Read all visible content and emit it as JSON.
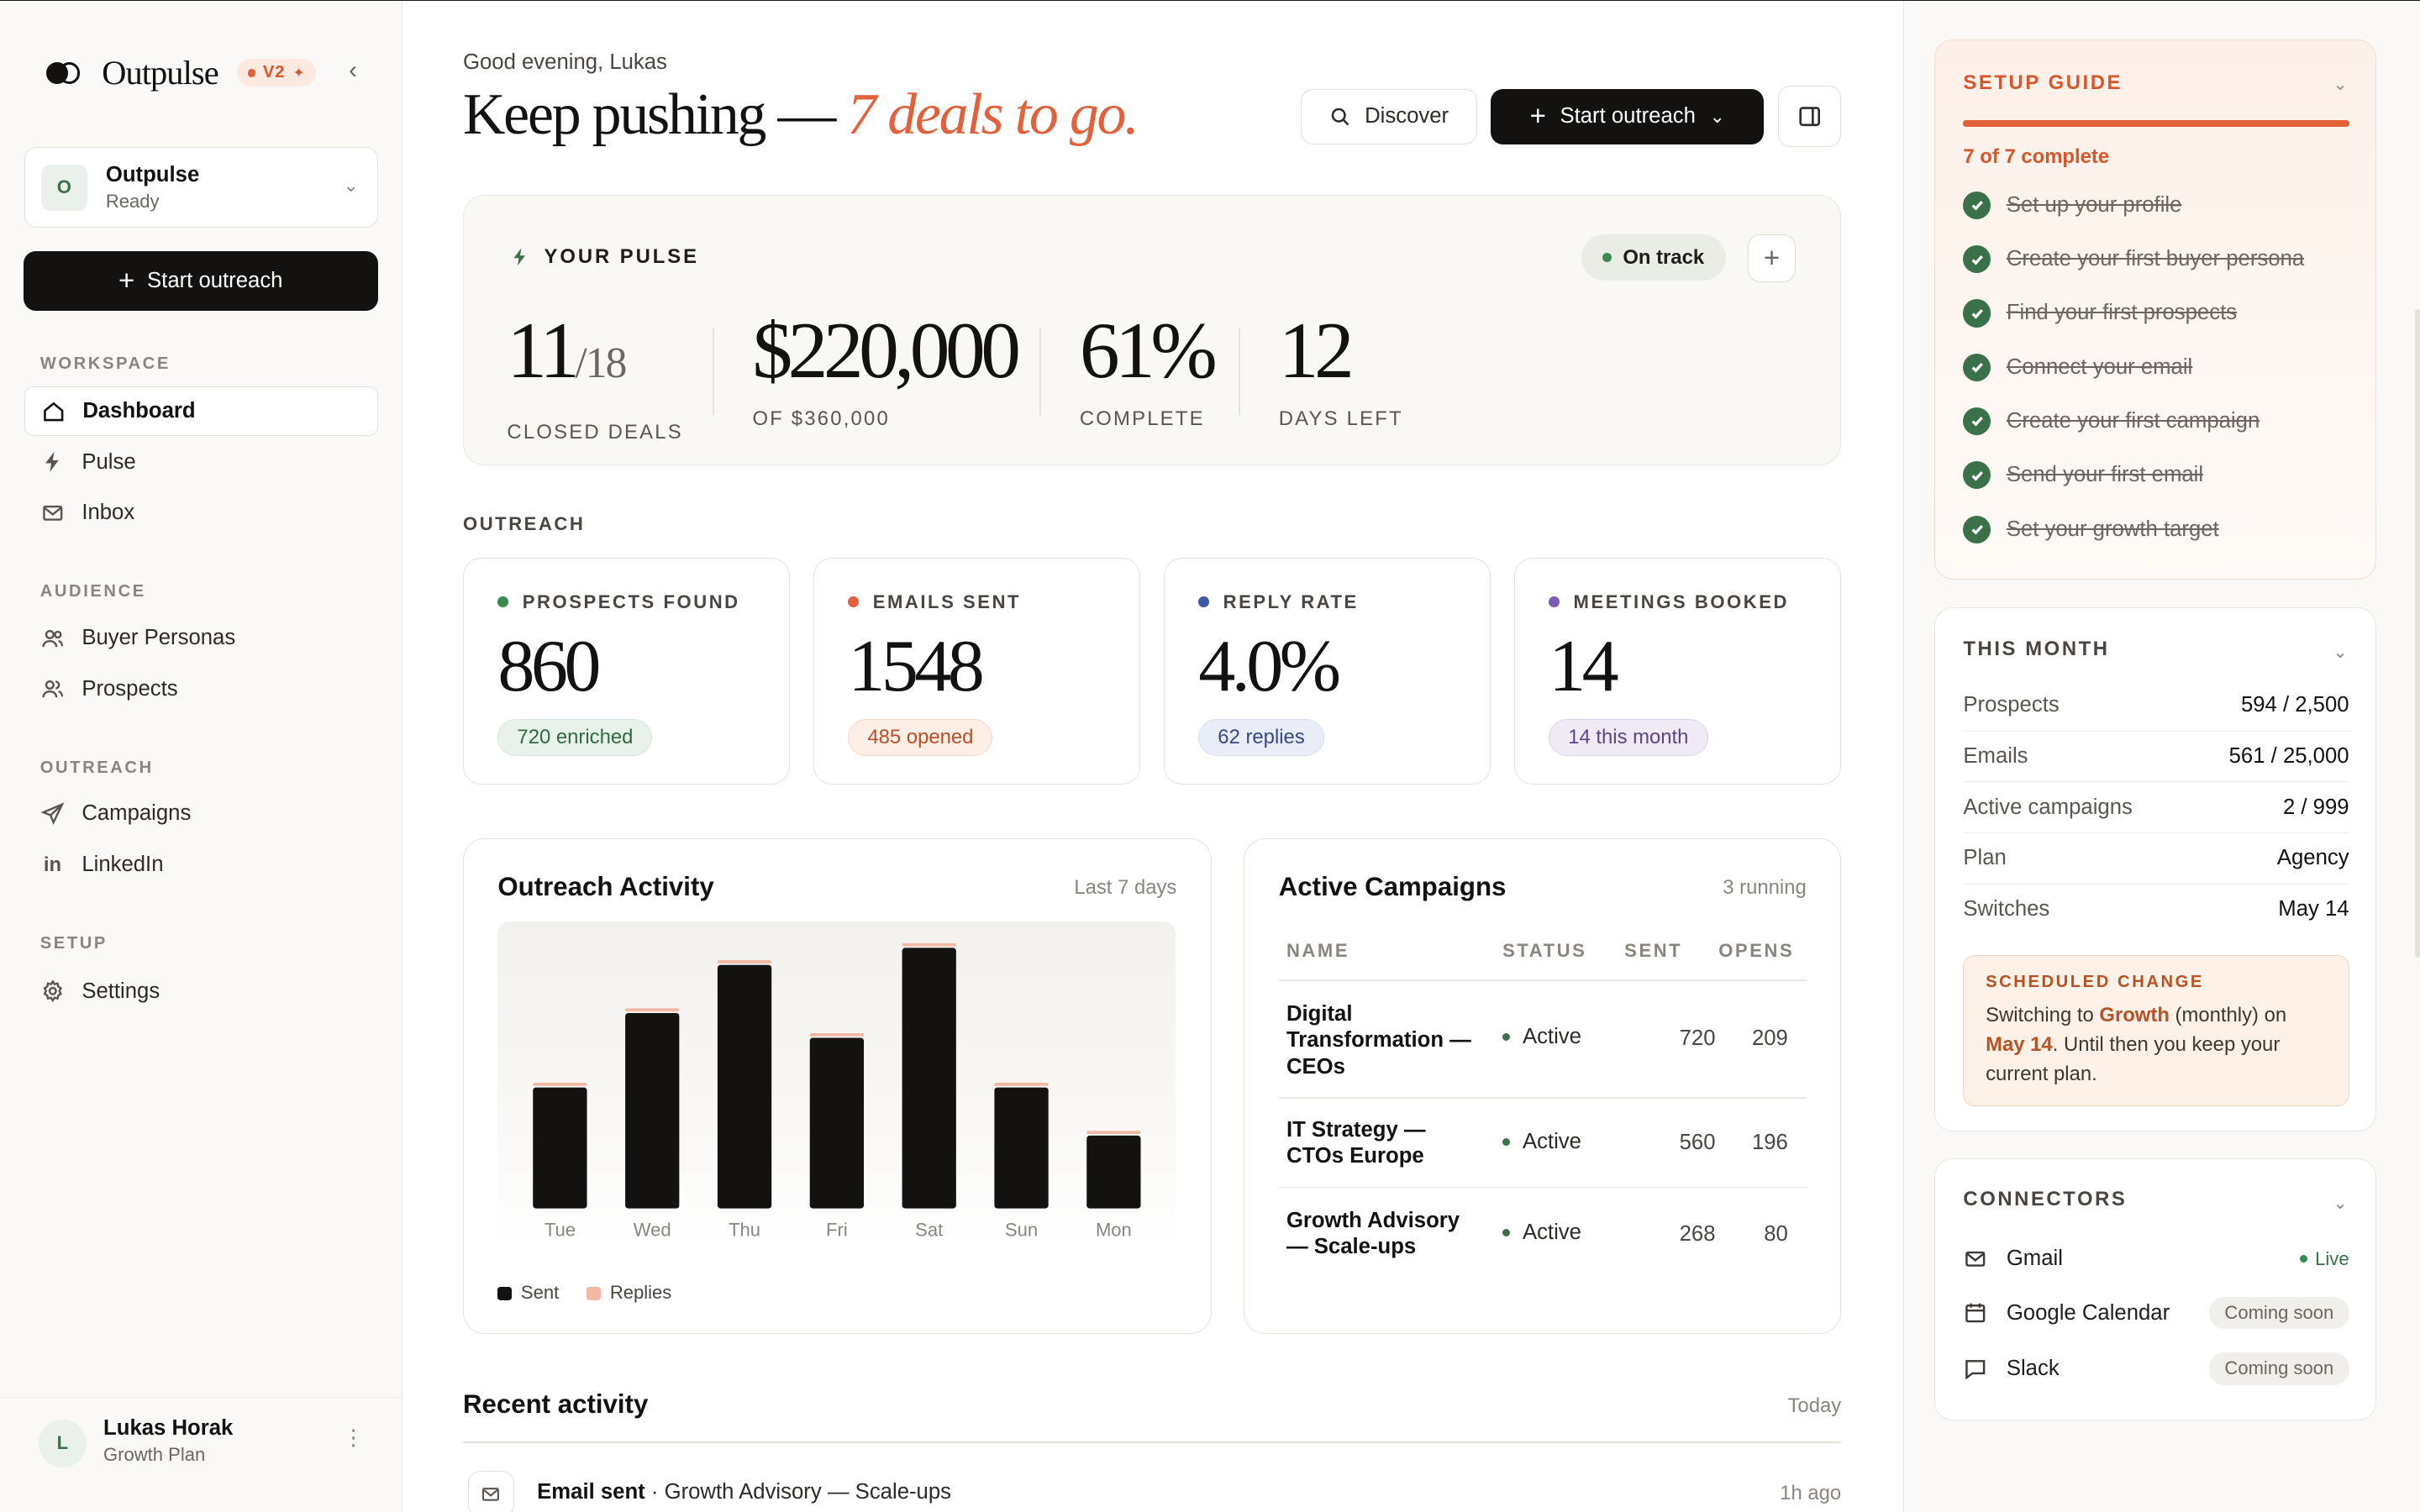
{
  "brand": {
    "name": "Outpulse",
    "badge": "V2"
  },
  "workspace": {
    "initial": "O",
    "name": "Outpulse",
    "status": "Ready"
  },
  "sidebar": {
    "cta_label": "Start outreach",
    "sections": [
      {
        "title": "WORKSPACE",
        "items": [
          {
            "label": "Dashboard",
            "icon": "home-icon",
            "active": true
          },
          {
            "label": "Pulse",
            "icon": "bolt-icon"
          },
          {
            "label": "Inbox",
            "icon": "mail-icon"
          }
        ]
      },
      {
        "title": "AUDIENCE",
        "items": [
          {
            "label": "Buyer Personas",
            "icon": "users-icon"
          },
          {
            "label": "Prospects",
            "icon": "user-group-icon"
          }
        ]
      },
      {
        "title": "OUTREACH",
        "items": [
          {
            "label": "Campaigns",
            "icon": "send-icon"
          },
          {
            "label": "LinkedIn",
            "icon": "linkedin-icon"
          }
        ]
      },
      {
        "title": "SETUP",
        "items": [
          {
            "label": "Settings",
            "icon": "gear-icon"
          }
        ]
      }
    ]
  },
  "user": {
    "initial": "L",
    "name": "Lukas Horak",
    "plan": "Growth Plan"
  },
  "header": {
    "greeting": "Good evening, Lukas",
    "headline": "Keep pushing — ",
    "headline_accent": "7 deals to go.",
    "discover_label": "Discover",
    "outreach_label": "Start outreach"
  },
  "pulse": {
    "title": "YOUR PULSE",
    "status": "On track",
    "metrics": [
      {
        "value": "11",
        "suffix": "/18",
        "label": "CLOSED DEALS"
      },
      {
        "value": "$220,000",
        "suffix": "",
        "label": "OF $360,000"
      },
      {
        "value": "61%",
        "suffix": "",
        "label": "COMPLETE"
      },
      {
        "value": "12",
        "suffix": "",
        "label": "DAYS LEFT"
      }
    ]
  },
  "outreach": {
    "section_label": "OUTREACH",
    "stats": [
      {
        "label": "PROSPECTS FOUND",
        "value": "860",
        "pill": "720 enriched",
        "color": "#3a8a4f",
        "pill_bg": "#e8f1ea",
        "pill_fg": "#2f6b3f",
        "pill_border": "#d4e6d8"
      },
      {
        "label": "EMAILS SENT",
        "value": "1548",
        "pill": "485 opened",
        "color": "#e2603a",
        "pill_bg": "#fdeee6",
        "pill_fg": "#b94f25",
        "pill_border": "#f6d6c5"
      },
      {
        "label": "REPLY RATE",
        "value": "4.0%",
        "pill": "62 replies",
        "color": "#3c58a8",
        "pill_bg": "#e9edf7",
        "pill_fg": "#35498a",
        "pill_border": "#d5ddef"
      },
      {
        "label": "MEETINGS BOOKED",
        "value": "14",
        "pill": "14 this month",
        "color": "#7a5ab0",
        "pill_bg": "#efeaf6",
        "pill_fg": "#5c4486",
        "pill_border": "#ddd3ec"
      }
    ]
  },
  "activity_chart": {
    "title": "Outreach Activity",
    "range": "Last 7 days",
    "legend_sent": "Sent",
    "legend_replies": "Replies"
  },
  "chart_data": {
    "type": "bar",
    "categories": [
      "Tue",
      "Wed",
      "Thu",
      "Fri",
      "Sat",
      "Sun",
      "Mon"
    ],
    "series": [
      {
        "name": "Sent",
        "values": [
          78,
          126,
          157,
          110,
          168,
          78,
          47
        ],
        "color": "#141210"
      },
      {
        "name": "Replies",
        "values": [
          2,
          2,
          2,
          2,
          2,
          2,
          2
        ],
        "color": "#f2b8a3"
      }
    ],
    "ylim": [
      0,
      185
    ],
    "grid": false,
    "legend": "bottom-left"
  },
  "campaigns": {
    "title": "Active Campaigns",
    "count": "3 running",
    "columns": [
      "NAME",
      "STATUS",
      "SENT",
      "OPENS"
    ],
    "rows": [
      {
        "name": "Digital Transformation — CEOs",
        "status": "Active",
        "sent": "720",
        "opens": "209"
      },
      {
        "name": "IT Strategy — CTOs Europe",
        "status": "Active",
        "sent": "560",
        "opens": "196"
      },
      {
        "name": "Growth Advisory — Scale-ups",
        "status": "Active",
        "sent": "268",
        "opens": "80"
      }
    ]
  },
  "recent": {
    "title": "Recent activity",
    "when": "Today",
    "item_action": "Email sent",
    "item_detail": " · Growth Advisory — Scale-ups",
    "item_time": "1h ago"
  },
  "setup_guide": {
    "title": "SETUP GUIDE",
    "progress_label": "7 of 7 complete",
    "progress": 1.0,
    "items": [
      "Set up your profile",
      "Create your first buyer persona",
      "Find your first prospects",
      "Connect your email",
      "Create your first campaign",
      "Send your first email",
      "Set your growth target"
    ]
  },
  "this_month": {
    "title": "THIS MONTH",
    "rows": [
      {
        "k": "Prospects",
        "v": "594 / 2,500"
      },
      {
        "k": "Emails",
        "v": "561 / 25,000"
      },
      {
        "k": "Active campaigns",
        "v": "2 / 999"
      },
      {
        "k": "Plan",
        "v": "Agency"
      },
      {
        "k": "Switches",
        "v": "May 14"
      }
    ],
    "scheduled_title": "SCHEDULED CHANGE",
    "scheduled_pre": "Switching to ",
    "scheduled_plan": "Growth",
    "scheduled_mid": " (monthly) on ",
    "scheduled_date": "May 14",
    "scheduled_post": ". Until then you keep your current plan."
  },
  "connectors": {
    "title": "CONNECTORS",
    "items": [
      {
        "name": "Gmail",
        "icon": "mail-icon",
        "status": "Live",
        "kind": "live"
      },
      {
        "name": "Google Calendar",
        "icon": "calendar-icon",
        "status": "Coming soon",
        "kind": "soon"
      },
      {
        "name": "Slack",
        "icon": "chat-icon",
        "status": "Coming soon",
        "kind": "soon"
      }
    ]
  }
}
